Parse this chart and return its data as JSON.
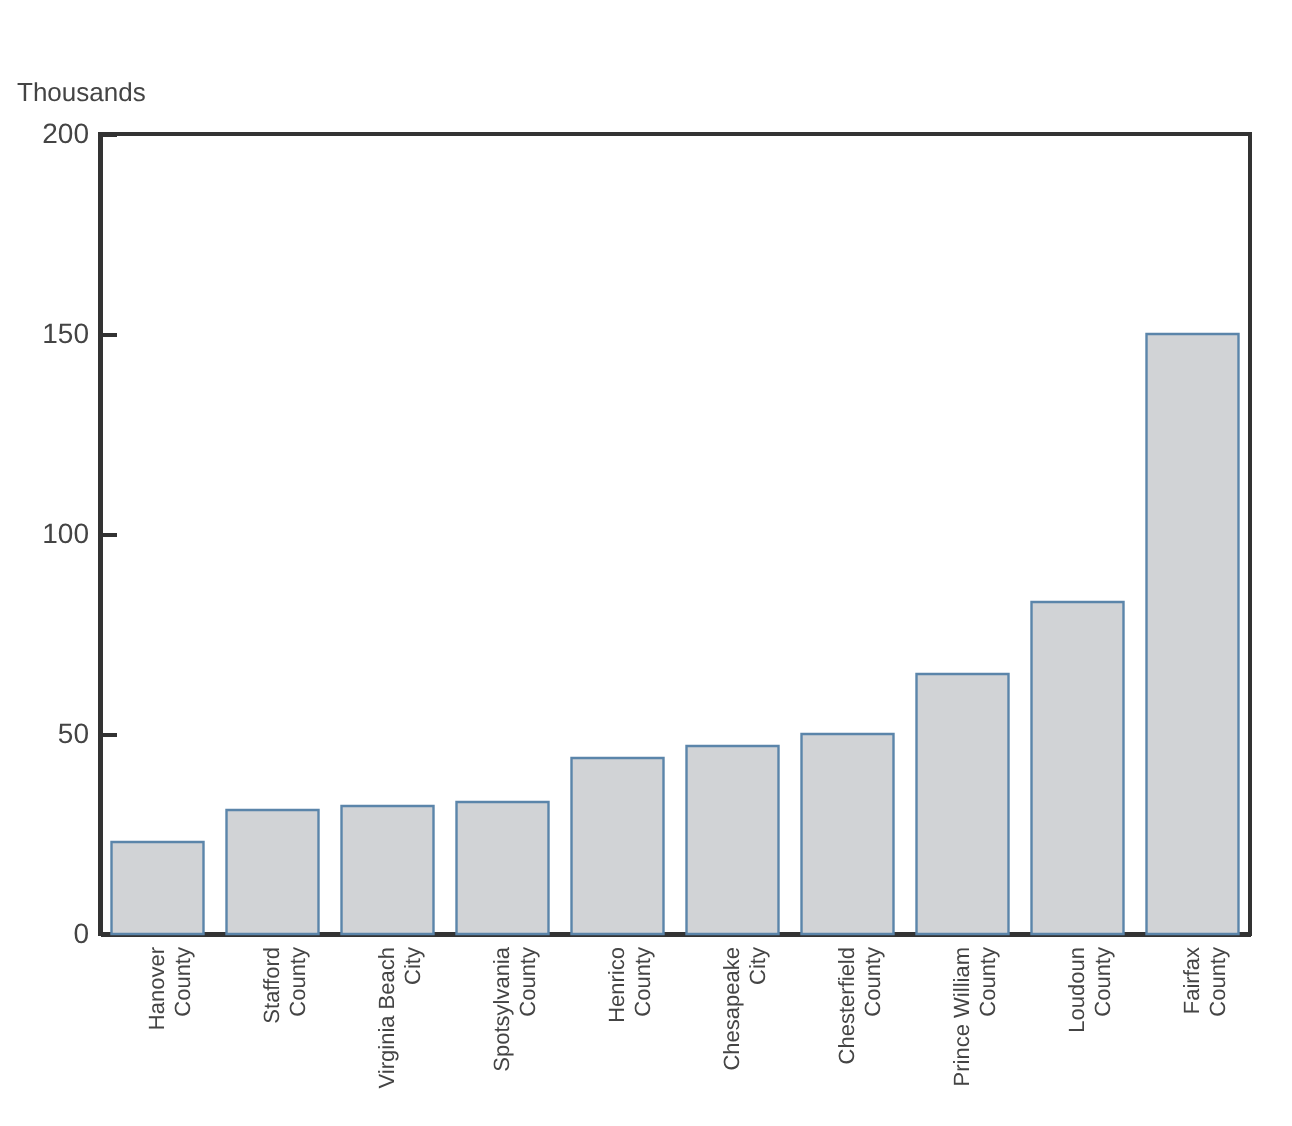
{
  "chart_data": {
    "type": "bar",
    "ylabel": "Thousands",
    "categories": [
      "Hanover County",
      "Stafford County",
      "Virginia Beach City",
      "Spotsylvania County",
      "Henrico County",
      "Chesapeake City",
      "Chesterfield County",
      "Prince William County",
      "Loudoun County",
      "Fairfax County"
    ],
    "values": [
      23,
      31,
      32,
      33,
      44,
      47,
      50,
      65,
      83,
      150
    ],
    "color": "#d1d3d6",
    "ylim": [
      0,
      200
    ],
    "yticks": [
      0,
      50,
      100,
      150,
      200
    ],
    "grid": false
  }
}
